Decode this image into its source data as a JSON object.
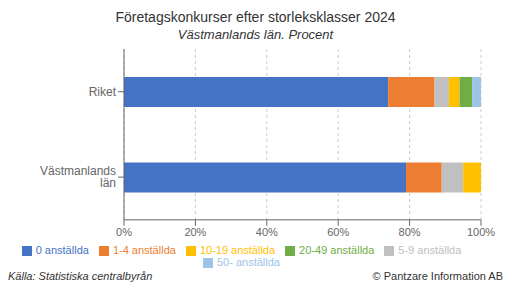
{
  "chart_data": {
    "type": "bar",
    "orientation": "horizontal",
    "stacked": true,
    "grid": true,
    "legend": "bottom",
    "title": "Företagskonkurser efter storleksklasser 2024",
    "subtitle": "Västmanlands län. Procent",
    "annotations": [
      "Källa: Statistiska centralbyrån",
      "© Pantzare Information AB"
    ],
    "categories": [
      "Västmanlands län",
      "Riket"
    ],
    "series": [
      {
        "name": "0 anställda",
        "color": "#4472c4",
        "values": [
          79.0,
          74.0
        ]
      },
      {
        "name": "1-4 anställda",
        "color": "#ed7d31",
        "values": [
          10.0,
          13.0
        ]
      },
      {
        "name": "5-9 anställda",
        "color": "#c0c0c0",
        "values": [
          6.0,
          4.0
        ]
      },
      {
        "name": "10-19 anställda",
        "color": "#ffc000",
        "values": [
          5.0,
          3.0
        ]
      },
      {
        "name": "20-49 anställda",
        "color": "#70ad47",
        "values": [
          0.0,
          3.5
        ]
      },
      {
        "name": "50- anställda",
        "color": "#9dc3e6",
        "values": [
          0.0,
          2.5
        ]
      }
    ],
    "xlim": [
      0,
      100
    ],
    "xticks": [
      {
        "value": 0,
        "label": "0%"
      },
      {
        "value": 20,
        "label": "20%"
      },
      {
        "value": 40,
        "label": "40%"
      },
      {
        "value": 60,
        "label": "60%"
      },
      {
        "value": 80,
        "label": "80%"
      },
      {
        "value": 100,
        "label": "100%"
      }
    ]
  }
}
